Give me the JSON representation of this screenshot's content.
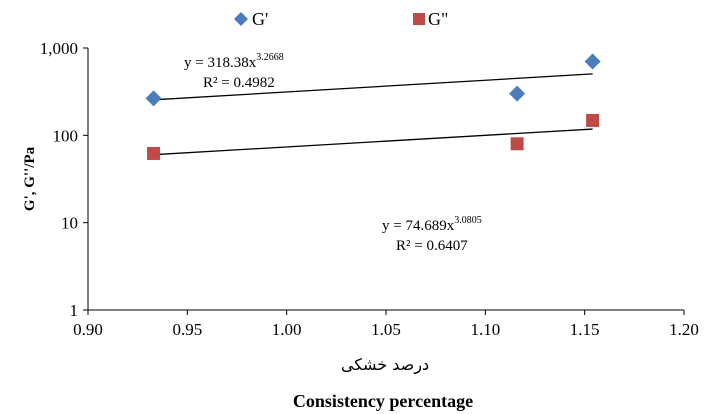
{
  "chart_data": {
    "type": "scatter",
    "y_scale": "log",
    "xlim": [
      0.9,
      1.2
    ],
    "ylim": [
      1,
      1000
    ],
    "x_ticks": [
      "0.90",
      "0.95",
      "1.00",
      "1.05",
      "1.10",
      "1.15",
      "1.20"
    ],
    "y_ticks": [
      "1",
      "10",
      "100",
      "1,000"
    ],
    "xlabel_fa": "درصد خشکی",
    "xlabel": "Consistency percentage",
    "ylabel": "G', G''/Pa",
    "legend_position": "top",
    "series": [
      {
        "name": "G'",
        "marker": "diamond",
        "color": "#4a7ebb",
        "points": [
          {
            "x": 0.933,
            "y": 265
          },
          {
            "x": 1.116,
            "y": 300
          },
          {
            "x": 1.154,
            "y": 700
          }
        ],
        "trendline": {
          "x_range": [
            0.933,
            1.154
          ],
          "y_range": [
            255,
            505
          ],
          "equation": "y = 318.38x",
          "exponent": "3.2668",
          "r2": "R² = 0.4982"
        }
      },
      {
        "name": "G\"",
        "marker": "square",
        "color": "#be4b48",
        "points": [
          {
            "x": 0.933,
            "y": 62
          },
          {
            "x": 1.116,
            "y": 80
          },
          {
            "x": 1.154,
            "y": 148
          }
        ],
        "trendline": {
          "x_range": [
            0.933,
            1.154
          ],
          "y_range": [
            60,
            118
          ],
          "equation": "y = 74.689x",
          "exponent": "3.0805",
          "r2": "R² = 0.6407"
        }
      }
    ]
  }
}
